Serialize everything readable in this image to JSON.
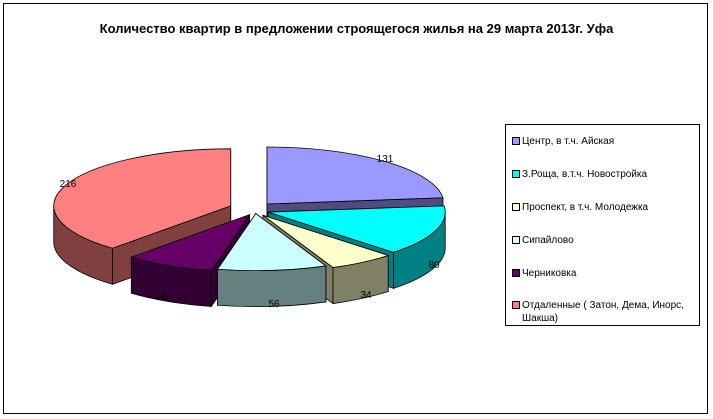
{
  "chart_data": {
    "type": "pie",
    "title": "Количество квартир в предложении строящегося жилья на 29 марта 2013г. Уфа",
    "three_d": true,
    "exploded": true,
    "legend_position": "right",
    "slices": [
      {
        "name": "Центр, в т.ч. Айская",
        "value": 131,
        "label": "131",
        "color": "#9999ff"
      },
      {
        "name": "З.Роща, в.т.ч. Новостройка",
        "value": 80,
        "label": "80",
        "color": "#00ffff"
      },
      {
        "name": "Проспект, в т.ч. Молодежка",
        "value": 34,
        "label": "34",
        "color": "#ffffcc"
      },
      {
        "name": "Сипайлово",
        "value": 56,
        "label": "56",
        "color": "#ccffff"
      },
      {
        "name": "Черниковка",
        "value": 46,
        "label": "46",
        "color": "#660066"
      },
      {
        "name": "Отдаленные ( Затон, Дема, Инорс, Шакша)",
        "value": 216,
        "label": "216",
        "color": "#ff8080"
      }
    ]
  }
}
